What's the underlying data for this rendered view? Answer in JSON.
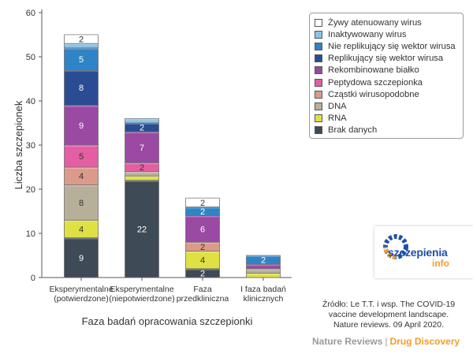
{
  "chart_data": {
    "type": "bar",
    "stacked": true,
    "title": "",
    "xlabel": "Faza badań opracowania szczepionki",
    "ylabel": "Liczba szczepionek",
    "ylim": [
      0,
      60
    ],
    "yticks": [
      "0",
      "10",
      "20",
      "30",
      "40",
      "50",
      "60"
    ],
    "grid": false,
    "legend_position": "top-right",
    "categories": [
      [
        "Eksperymentalne",
        "(potwierdzone)"
      ],
      [
        "Eksperymentalne",
        "(niepotwierdzone)"
      ],
      [
        "Faza",
        "przedkliniczna"
      ],
      [
        "I faza badań",
        "klinicznych"
      ]
    ],
    "series": [
      {
        "name": "Brak danych",
        "color": "#3e4a55",
        "text_color": "#ffffff",
        "values": [
          9,
          22,
          2,
          0
        ]
      },
      {
        "name": "RNA",
        "color": "#dfe044",
        "text_color": "#333333",
        "values": [
          4,
          1,
          4,
          1
        ]
      },
      {
        "name": "DNA",
        "color": "#b6b09b",
        "text_color": "#333333",
        "values": [
          8,
          1,
          0,
          1
        ]
      },
      {
        "name": "Cząstki wirusopodobne",
        "color": "#dc9a8a",
        "text_color": "#333333",
        "values": [
          4,
          0,
          2,
          0
        ]
      },
      {
        "name": "Peptydowa szczepionka",
        "color": "#e45ea3",
        "text_color": "#333333",
        "values": [
          5,
          2,
          0,
          0
        ]
      },
      {
        "name": "Rekombinowane białko",
        "color": "#9a4aa3",
        "text_color": "#ffffff",
        "values": [
          9,
          7,
          6,
          1
        ]
      },
      {
        "name": "Replikujący się wektor wirusa",
        "color": "#2a4c92",
        "text_color": "#ffffff",
        "values": [
          8,
          2,
          0,
          0
        ]
      },
      {
        "name": "Nie replikujący się wektor wirusa",
        "color": "#2f84c7",
        "text_color": "#ffffff",
        "values": [
          5,
          0,
          2,
          2
        ]
      },
      {
        "name": "Inaktywowany wirus",
        "color": "#8cc3e6",
        "text_color": "#333333",
        "values": [
          1,
          1,
          0,
          0
        ]
      },
      {
        "name": "Żywy atenuowany wirus",
        "color": "#ffffff",
        "text_color": "#333333",
        "values": [
          2,
          0,
          2,
          0
        ]
      }
    ],
    "data_labels": [
      [
        "9",
        "4",
        "8",
        "4",
        "5",
        "9",
        "8",
        "5",
        "",
        "2"
      ],
      [
        "22",
        "",
        "",
        "",
        "2",
        "7",
        "2",
        "",
        "",
        ""
      ],
      [
        "2",
        "4",
        "",
        "2",
        "",
        "6",
        "",
        "2",
        "",
        "2"
      ],
      [
        "",
        "",
        "",
        "",
        "",
        "",
        "",
        "2",
        "",
        ""
      ]
    ]
  },
  "legend_order": [
    9,
    8,
    7,
    6,
    5,
    4,
    3,
    2,
    1,
    0
  ],
  "logo": {
    "text_main": "szczepienia",
    "text_sub": "info"
  },
  "source": {
    "line1": "Źródło: Le T.T. i wsp. The COVID-19",
    "line2": "vaccine development landscape.",
    "line3": "Nature reviews. 09 April 2020."
  },
  "brand": {
    "part1": "Nature Reviews",
    "separator": "|",
    "part2": "Drug Discovery",
    "color1": "#9a9a9a",
    "color2": "#f39c2a"
  }
}
